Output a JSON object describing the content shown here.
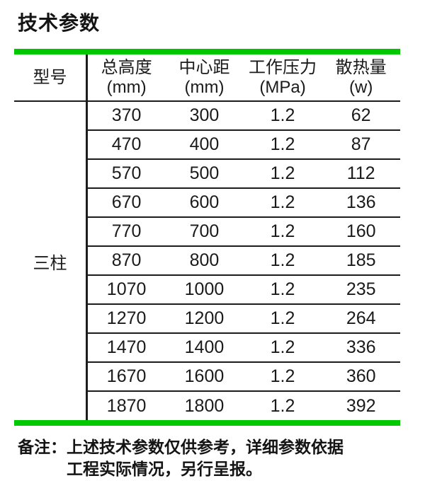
{
  "page": {
    "title": "技术参数",
    "accent_color": "#00c800"
  },
  "table": {
    "model_header": "型号",
    "model_value": "三柱",
    "columns": [
      {
        "label": "总高度",
        "unit": "(mm)"
      },
      {
        "label": "中心距",
        "unit": "(mm)"
      },
      {
        "label": "工作压力",
        "unit": "(MPa)"
      },
      {
        "label": "散热量",
        "unit": "(w)"
      }
    ],
    "rows": [
      [
        "370",
        "300",
        "1.2",
        "62"
      ],
      [
        "470",
        "400",
        "1.2",
        "87"
      ],
      [
        "570",
        "500",
        "1.2",
        "112"
      ],
      [
        "670",
        "600",
        "1.2",
        "136"
      ],
      [
        "770",
        "700",
        "1.2",
        "160"
      ],
      [
        "870",
        "800",
        "1.2",
        "185"
      ],
      [
        "1070",
        "1000",
        "1.2",
        "235"
      ],
      [
        "1270",
        "1200",
        "1.2",
        "264"
      ],
      [
        "1470",
        "1400",
        "1.2",
        "336"
      ],
      [
        "1670",
        "1600",
        "1.2",
        "360"
      ],
      [
        "1870",
        "1800",
        "1.2",
        "392"
      ]
    ]
  },
  "note": {
    "label": "备注：",
    "line1": "上述技术参数仅供参考，详细参数依据",
    "line2": "工程实际情况，另行呈报。"
  }
}
